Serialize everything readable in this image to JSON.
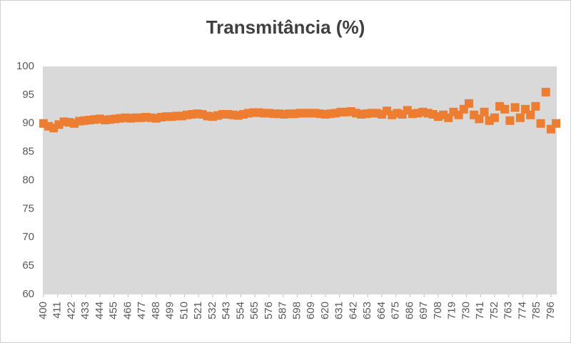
{
  "chart_data": {
    "type": "scatter",
    "title": "Transmitância (%)",
    "series": [
      {
        "color": "#ed7d31",
        "x": [
          400,
          404,
          408,
          412,
          416,
          420,
          424,
          428,
          432,
          436,
          440,
          444,
          448,
          452,
          456,
          460,
          464,
          468,
          472,
          476,
          480,
          484,
          488,
          492,
          496,
          500,
          504,
          508,
          512,
          516,
          520,
          524,
          528,
          532,
          536,
          540,
          544,
          548,
          552,
          556,
          560,
          564,
          568,
          572,
          576,
          580,
          584,
          588,
          592,
          596,
          600,
          604,
          608,
          612,
          616,
          620,
          624,
          628,
          632,
          636,
          640,
          644,
          648,
          652,
          656,
          660,
          664,
          668,
          672,
          676,
          680,
          684,
          688,
          692,
          696,
          700,
          704,
          708,
          712,
          716,
          720,
          724,
          728,
          732,
          736,
          740,
          744,
          748,
          752,
          756,
          760,
          764,
          768,
          772,
          776,
          780,
          784,
          788,
          792,
          796,
          800
        ],
        "values": [
          90,
          89.5,
          89.2,
          89.8,
          90.3,
          90.2,
          90,
          90.4,
          90.5,
          90.6,
          90.7,
          90.8,
          90.6,
          90.7,
          90.8,
          90.9,
          91,
          90.9,
          91,
          91,
          91.1,
          91,
          90.9,
          91.1,
          91.2,
          91.2,
          91.3,
          91.3,
          91.5,
          91.6,
          91.7,
          91.6,
          91.3,
          91.2,
          91.4,
          91.6,
          91.6,
          91.5,
          91.4,
          91.6,
          91.8,
          91.9,
          91.9,
          91.8,
          91.8,
          91.7,
          91.7,
          91.6,
          91.7,
          91.7,
          91.8,
          91.8,
          91.8,
          91.8,
          91.7,
          91.6,
          91.7,
          91.8,
          92,
          92,
          92.1,
          91.8,
          91.6,
          91.7,
          91.8,
          91.8,
          91.6,
          92.2,
          91.5,
          91.8,
          91.6,
          92.3,
          91.7,
          91.8,
          92,
          91.8,
          91.6,
          91.2,
          91.5,
          91,
          92,
          91.5,
          92.5,
          93.5,
          91.5,
          90.8,
          92,
          90.5,
          91,
          93,
          92.5,
          90.5,
          92.8,
          91,
          92.5,
          91.5,
          93,
          90,
          95.5,
          89,
          90
        ]
      }
    ],
    "xlim": [
      399.5,
      800.5
    ],
    "xticks": [
      400,
      411,
      422,
      433,
      444,
      455,
      466,
      477,
      488,
      499,
      510,
      521,
      532,
      543,
      554,
      565,
      576,
      587,
      598,
      609,
      620,
      631,
      642,
      653,
      664,
      675,
      686,
      697,
      708,
      719,
      730,
      741,
      752,
      763,
      774,
      785,
      796
    ],
    "ylim": [
      60,
      100
    ],
    "yticks": [
      60,
      65,
      70,
      75,
      80,
      85,
      90,
      95,
      100
    ]
  }
}
